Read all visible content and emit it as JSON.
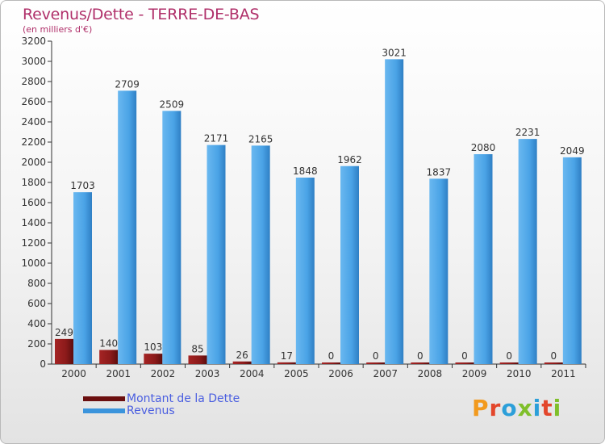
{
  "title": "Revenus/Dette - TERRE-DE-BAS",
  "subtitle": "(en milliers d'€)",
  "colors": {
    "title": "#b0306a",
    "dette": "#8b1a1a",
    "revenus": "#4aa3e6",
    "axis": "#333333"
  },
  "legend": [
    {
      "label": "Montant de la Dette",
      "color": "#6b0f0f"
    },
    {
      "label": "Revenus",
      "color": "#3b94dc"
    }
  ],
  "logo": {
    "text": "Proxiti",
    "letters": [
      "P",
      "r",
      "o",
      "x",
      "i",
      "t",
      "i"
    ],
    "colors": [
      "#f29a1e",
      "#e3462b",
      "#2c9fd9",
      "#7fbf2a",
      "#2c9fd9",
      "#e3462b",
      "#7fbf2a"
    ]
  },
  "chart_data": {
    "type": "bar",
    "title": "Revenus/Dette - TERRE-DE-BAS",
    "ylabel": "(en milliers d'€)",
    "xlabel": "",
    "categories": [
      "2000",
      "2001",
      "2002",
      "2003",
      "2004",
      "2005",
      "2006",
      "2007",
      "2008",
      "2009",
      "2010",
      "2011"
    ],
    "series": [
      {
        "name": "Montant de la Dette",
        "values": [
          249,
          140,
          103,
          85,
          26,
          17,
          0,
          0,
          0,
          0,
          0,
          0
        ]
      },
      {
        "name": "Revenus",
        "values": [
          1703,
          2709,
          2509,
          2171,
          2165,
          1848,
          1962,
          3021,
          1837,
          2080,
          2231,
          2049
        ]
      }
    ],
    "ylim": [
      0,
      3200
    ],
    "yticks": [
      0,
      200,
      400,
      600,
      800,
      1000,
      1200,
      1400,
      1600,
      1800,
      2000,
      2200,
      2400,
      2600,
      2800,
      3000,
      3200
    ],
    "grid": false,
    "legend_position": "bottom-left"
  }
}
